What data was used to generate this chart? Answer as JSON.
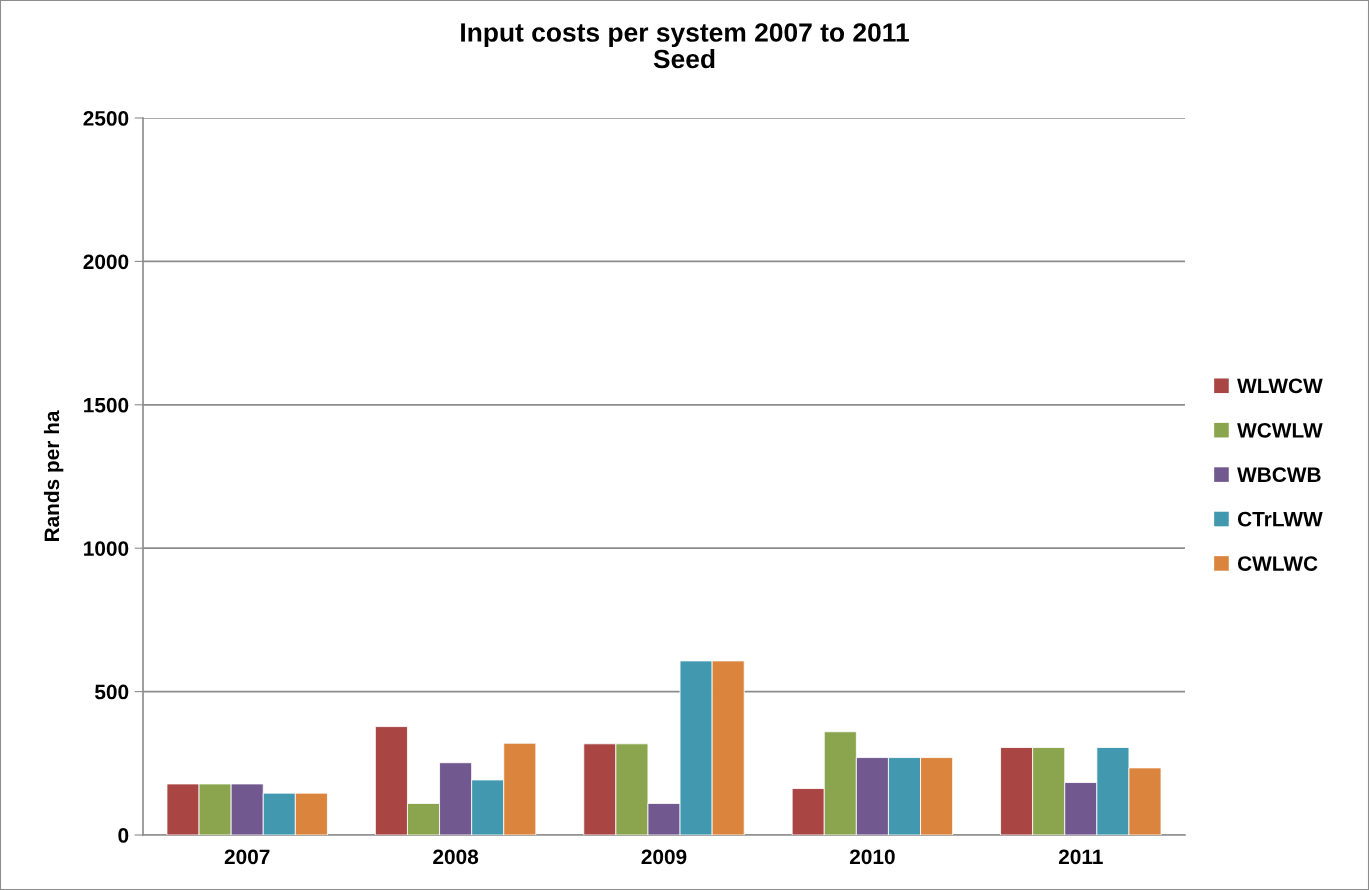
{
  "chart_data": {
    "type": "bar",
    "title": "Input costs per system 2007 to 2011\nSeed",
    "ylabel": "Rands per ha",
    "categories": [
      "2007",
      "2008",
      "2009",
      "2010",
      "2011"
    ],
    "series": [
      {
        "name": "WLWCW",
        "color": "#a94543",
        "values": [
          178,
          378,
          318,
          162,
          305
        ]
      },
      {
        "name": "WCWLW",
        "color": "#8aa54d",
        "values": [
          178,
          110,
          318,
          360,
          305
        ]
      },
      {
        "name": "WBCWB",
        "color": "#71588f",
        "values": [
          178,
          252,
          110,
          270,
          183
        ]
      },
      {
        "name": "CTrLWW",
        "color": "#4198af",
        "values": [
          146,
          192,
          607,
          270,
          305
        ]
      },
      {
        "name": "CWLWC",
        "color": "#db843d",
        "values": [
          146,
          320,
          607,
          270,
          234
        ]
      }
    ],
    "ylim": [
      0,
      2500
    ],
    "yticks": [
      0,
      500,
      1000,
      1500,
      2000,
      2500
    ],
    "grid": "y",
    "legend": "right"
  }
}
